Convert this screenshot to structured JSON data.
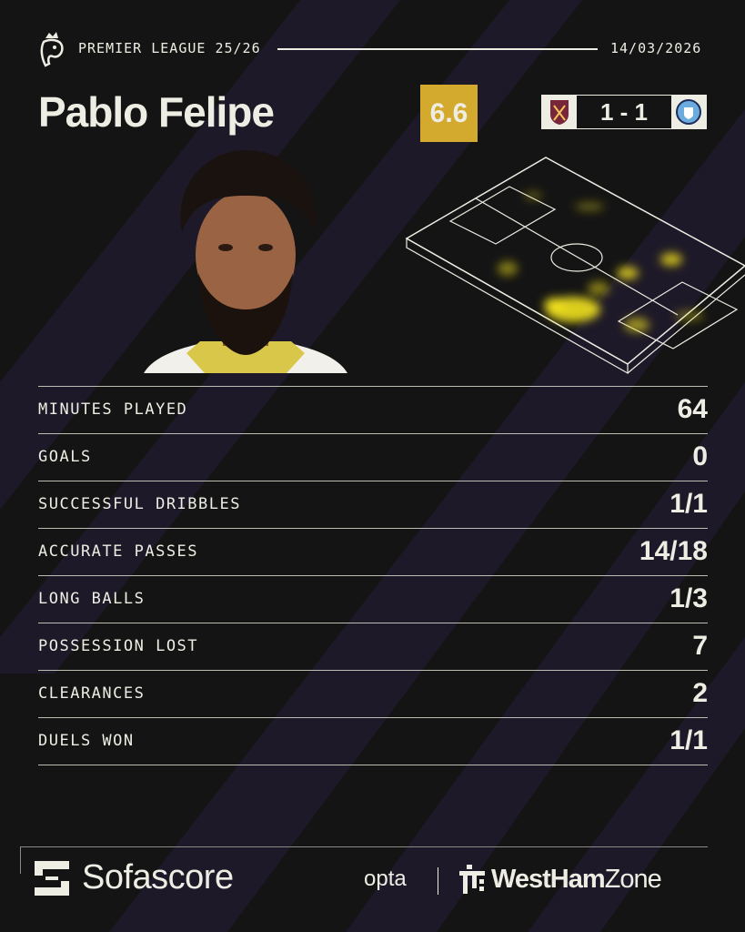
{
  "header": {
    "league": "PREMIER LEAGUE 25/26",
    "date": "14/03/2026",
    "league_logo_icon": "premier-league-lion-icon"
  },
  "player": {
    "name": "Pablo Felipe",
    "rating": "6.6",
    "photo": "player-photo"
  },
  "match": {
    "home_crest": "west-ham-crest-icon",
    "away_crest": "man-city-crest-icon",
    "score": "1 - 1"
  },
  "colors": {
    "background": "#141414",
    "text": "#eeede3",
    "rating_bg": "#d4aa2e",
    "stripe": "#211b2d",
    "heat": "#f2e21c"
  },
  "stats": [
    {
      "label": "MINUTES PLAYED",
      "value": "64"
    },
    {
      "label": "GOALS",
      "value": "0"
    },
    {
      "label": "SUCCESSFUL DRIBBLES",
      "value": "1/1"
    },
    {
      "label": "ACCURATE PASSES",
      "value": "14/18"
    },
    {
      "label": "LONG BALLS",
      "value": "1/3"
    },
    {
      "label": "POSSESSION LOST",
      "value": "7"
    },
    {
      "label": "CLEARANCES",
      "value": "2"
    },
    {
      "label": "DUELS WON",
      "value": "1/1"
    }
  ],
  "footer": {
    "brand": "Sofascore",
    "partner": "opta",
    "outlet_bold": "WestHam",
    "outlet_light": "Zone"
  }
}
